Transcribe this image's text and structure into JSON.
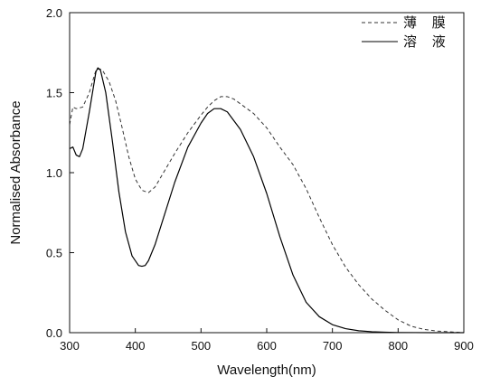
{
  "chart_data": {
    "type": "line",
    "title": "",
    "xlabel": "Wavelength(nm)",
    "ylabel": "Normalised Absorbance",
    "xlim": [
      300,
      900
    ],
    "ylim": [
      0.0,
      2.0
    ],
    "x_ticks": [
      "300",
      "400",
      "500",
      "600",
      "700",
      "800",
      "900"
    ],
    "y_ticks": [
      "0.0",
      "0.5",
      "1.0",
      "1.5",
      "2.0"
    ],
    "grid": false,
    "legend_position": "top-right",
    "series": [
      {
        "name": "薄 膜",
        "line_style": "dashed",
        "color": "#333333",
        "points": [
          [
            300,
            1.3
          ],
          [
            305,
            1.41
          ],
          [
            310,
            1.4
          ],
          [
            320,
            1.41
          ],
          [
            330,
            1.5
          ],
          [
            340,
            1.64
          ],
          [
            345,
            1.65
          ],
          [
            350,
            1.64
          ],
          [
            360,
            1.57
          ],
          [
            370,
            1.45
          ],
          [
            380,
            1.28
          ],
          [
            390,
            1.1
          ],
          [
            400,
            0.96
          ],
          [
            410,
            0.89
          ],
          [
            420,
            0.875
          ],
          [
            430,
            0.91
          ],
          [
            440,
            0.98
          ],
          [
            460,
            1.12
          ],
          [
            480,
            1.25
          ],
          [
            500,
            1.36
          ],
          [
            510,
            1.41
          ],
          [
            520,
            1.45
          ],
          [
            530,
            1.475
          ],
          [
            540,
            1.475
          ],
          [
            550,
            1.46
          ],
          [
            560,
            1.43
          ],
          [
            580,
            1.37
          ],
          [
            600,
            1.28
          ],
          [
            620,
            1.16
          ],
          [
            640,
            1.05
          ],
          [
            660,
            0.9
          ],
          [
            680,
            0.72
          ],
          [
            700,
            0.55
          ],
          [
            720,
            0.41
          ],
          [
            740,
            0.3
          ],
          [
            760,
            0.21
          ],
          [
            780,
            0.14
          ],
          [
            800,
            0.08
          ],
          [
            820,
            0.04
          ],
          [
            840,
            0.02
          ],
          [
            860,
            0.01
          ],
          [
            880,
            0.005
          ],
          [
            900,
            0.0
          ]
        ]
      },
      {
        "name": "溶 液",
        "line_style": "solid",
        "color": "#000000",
        "points": [
          [
            300,
            1.15
          ],
          [
            305,
            1.16
          ],
          [
            310,
            1.11
          ],
          [
            315,
            1.1
          ],
          [
            320,
            1.15
          ],
          [
            330,
            1.38
          ],
          [
            340,
            1.63
          ],
          [
            343,
            1.655
          ],
          [
            347,
            1.64
          ],
          [
            355,
            1.5
          ],
          [
            365,
            1.2
          ],
          [
            375,
            0.88
          ],
          [
            385,
            0.63
          ],
          [
            395,
            0.48
          ],
          [
            405,
            0.42
          ],
          [
            410,
            0.415
          ],
          [
            415,
            0.42
          ],
          [
            420,
            0.45
          ],
          [
            430,
            0.55
          ],
          [
            440,
            0.68
          ],
          [
            460,
            0.94
          ],
          [
            480,
            1.16
          ],
          [
            500,
            1.31
          ],
          [
            510,
            1.37
          ],
          [
            520,
            1.4
          ],
          [
            530,
            1.4
          ],
          [
            540,
            1.38
          ],
          [
            560,
            1.27
          ],
          [
            580,
            1.1
          ],
          [
            600,
            0.87
          ],
          [
            620,
            0.6
          ],
          [
            640,
            0.36
          ],
          [
            660,
            0.19
          ],
          [
            680,
            0.1
          ],
          [
            700,
            0.05
          ],
          [
            720,
            0.025
          ],
          [
            740,
            0.012
          ],
          [
            760,
            0.006
          ],
          [
            780,
            0.003
          ],
          [
            800,
            0.001
          ],
          [
            850,
            0.0
          ],
          [
            900,
            0.0
          ]
        ]
      }
    ]
  }
}
